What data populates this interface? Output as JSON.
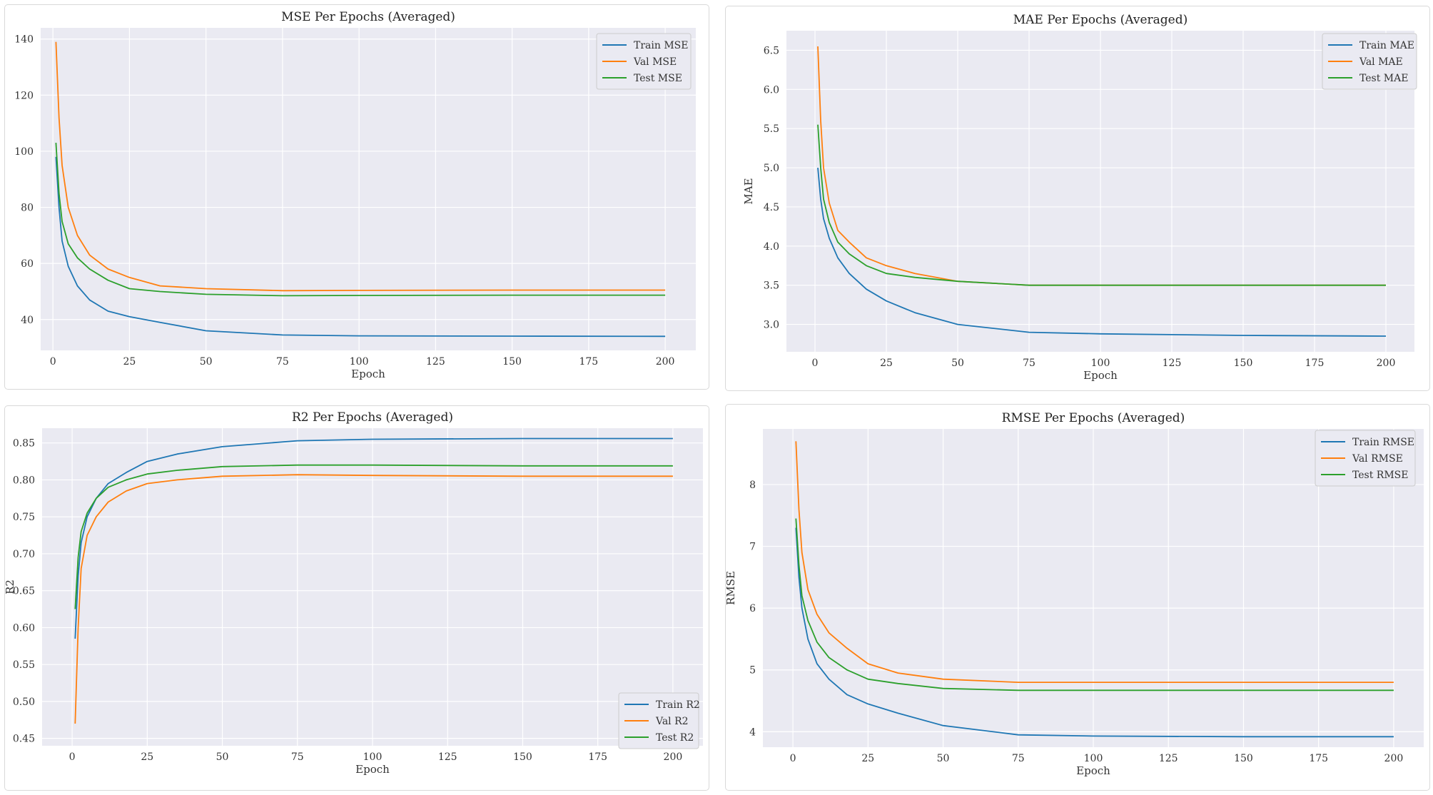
{
  "colors": {
    "train": "#1f77b4",
    "val": "#ff7f0e",
    "test": "#2ca02c",
    "plot_bg": "#eaeaf2",
    "grid": "#ffffff"
  },
  "chart_data": [
    {
      "type": "line",
      "title": "MSE Per Epochs (Averaged)",
      "xlabel": "Epoch",
      "ylabel": "",
      "xlim": [
        -4,
        210
      ],
      "ylim": [
        29,
        144
      ],
      "xticks": [
        0,
        25,
        50,
        75,
        100,
        125,
        150,
        175,
        200
      ],
      "yticks": [
        40,
        60,
        80,
        100,
        120,
        140
      ],
      "legend_position": "top-right",
      "series": [
        {
          "name": "Train MSE",
          "key": "train",
          "x": [
            1,
            2,
            3,
            5,
            8,
            12,
            18,
            25,
            35,
            50,
            75,
            100,
            150,
            200
          ],
          "y": [
            98,
            80,
            68,
            59,
            52,
            47,
            43,
            41,
            39,
            36,
            34.5,
            34.2,
            34.1,
            34
          ]
        },
        {
          "name": "Val MSE",
          "key": "val",
          "x": [
            1,
            2,
            3,
            5,
            8,
            12,
            18,
            25,
            35,
            50,
            75,
            100,
            150,
            200
          ],
          "y": [
            139,
            112,
            95,
            80,
            70,
            63,
            58,
            55,
            52,
            51,
            50.3,
            50.4,
            50.5,
            50.5
          ]
        },
        {
          "name": "Test MSE",
          "key": "test",
          "x": [
            1,
            2,
            3,
            5,
            8,
            12,
            18,
            25,
            35,
            50,
            75,
            100,
            150,
            200
          ],
          "y": [
            103,
            85,
            75,
            67,
            62,
            58,
            54,
            51,
            50,
            49,
            48.5,
            48.6,
            48.7,
            48.7
          ]
        }
      ]
    },
    {
      "type": "line",
      "title": "MAE Per Epochs (Averaged)",
      "xlabel": "Epoch",
      "ylabel": "MAE",
      "xlim": [
        -10,
        210
      ],
      "ylim": [
        2.65,
        6.75
      ],
      "xticks": [
        0,
        25,
        50,
        75,
        100,
        125,
        150,
        175,
        200
      ],
      "yticks": [
        3.0,
        3.5,
        4.0,
        4.5,
        5.0,
        5.5,
        6.0,
        6.5
      ],
      "legend_position": "top-right",
      "series": [
        {
          "name": "Train MAE",
          "key": "train",
          "x": [
            1,
            2,
            3,
            5,
            8,
            12,
            18,
            25,
            35,
            50,
            75,
            100,
            150,
            200
          ],
          "y": [
            5.0,
            4.6,
            4.35,
            4.1,
            3.85,
            3.65,
            3.45,
            3.3,
            3.15,
            3.0,
            2.9,
            2.88,
            2.86,
            2.85
          ]
        },
        {
          "name": "Val MAE",
          "key": "val",
          "x": [
            1,
            2,
            3,
            5,
            8,
            12,
            18,
            25,
            35,
            50,
            75,
            100,
            150,
            200
          ],
          "y": [
            6.55,
            5.6,
            5.0,
            4.55,
            4.2,
            4.05,
            3.85,
            3.75,
            3.65,
            3.55,
            3.5,
            3.5,
            3.5,
            3.5
          ]
        },
        {
          "name": "Test MAE",
          "key": "test",
          "x": [
            1,
            2,
            3,
            5,
            8,
            12,
            18,
            25,
            35,
            50,
            75,
            100,
            150,
            200
          ],
          "y": [
            5.55,
            5.0,
            4.6,
            4.3,
            4.05,
            3.9,
            3.75,
            3.65,
            3.6,
            3.55,
            3.5,
            3.5,
            3.5,
            3.5
          ]
        }
      ]
    },
    {
      "type": "line",
      "title": "R2 Per Epochs (Averaged)",
      "xlabel": "Epoch",
      "ylabel": "R2",
      "xlim": [
        -10,
        210
      ],
      "ylim": [
        0.44,
        0.87
      ],
      "xticks": [
        0,
        25,
        50,
        75,
        100,
        125,
        150,
        175,
        200
      ],
      "yticks": [
        0.45,
        0.5,
        0.55,
        0.6,
        0.65,
        0.7,
        0.75,
        0.8,
        0.85
      ],
      "legend_position": "bottom-right",
      "series": [
        {
          "name": "Train R2",
          "key": "train",
          "x": [
            1,
            2,
            3,
            5,
            8,
            12,
            18,
            25,
            35,
            50,
            75,
            100,
            150,
            200
          ],
          "y": [
            0.585,
            0.67,
            0.715,
            0.75,
            0.775,
            0.795,
            0.81,
            0.825,
            0.835,
            0.845,
            0.853,
            0.855,
            0.856,
            0.856
          ]
        },
        {
          "name": "Val R2",
          "key": "val",
          "x": [
            1,
            2,
            3,
            5,
            8,
            12,
            18,
            25,
            35,
            50,
            75,
            100,
            150,
            200
          ],
          "y": [
            0.47,
            0.6,
            0.68,
            0.725,
            0.75,
            0.77,
            0.785,
            0.795,
            0.8,
            0.805,
            0.807,
            0.806,
            0.805,
            0.805
          ]
        },
        {
          "name": "Test R2",
          "key": "test",
          "x": [
            1,
            2,
            3,
            5,
            8,
            12,
            18,
            25,
            35,
            50,
            75,
            100,
            150,
            200
          ],
          "y": [
            0.625,
            0.695,
            0.73,
            0.755,
            0.775,
            0.79,
            0.8,
            0.808,
            0.813,
            0.818,
            0.82,
            0.82,
            0.819,
            0.819
          ]
        }
      ]
    },
    {
      "type": "line",
      "title": "RMSE Per Epochs (Averaged)",
      "xlabel": "Epoch",
      "ylabel": "RMSE",
      "xlim": [
        -10,
        210
      ],
      "ylim": [
        3.75,
        8.9
      ],
      "xticks": [
        0,
        25,
        50,
        75,
        100,
        125,
        150,
        175,
        200
      ],
      "yticks": [
        4,
        5,
        6,
        7,
        8
      ],
      "legend_position": "top-right",
      "series": [
        {
          "name": "Train RMSE",
          "key": "train",
          "x": [
            1,
            2,
            3,
            5,
            8,
            12,
            18,
            25,
            35,
            50,
            75,
            100,
            150,
            200
          ],
          "y": [
            7.3,
            6.5,
            6.0,
            5.5,
            5.1,
            4.85,
            4.6,
            4.45,
            4.3,
            4.1,
            3.95,
            3.93,
            3.92,
            3.92
          ]
        },
        {
          "name": "Val RMSE",
          "key": "val",
          "x": [
            1,
            2,
            3,
            5,
            8,
            12,
            18,
            25,
            35,
            50,
            75,
            100,
            150,
            200
          ],
          "y": [
            8.7,
            7.6,
            6.9,
            6.3,
            5.9,
            5.6,
            5.35,
            5.1,
            4.95,
            4.85,
            4.8,
            4.8,
            4.8,
            4.8
          ]
        },
        {
          "name": "Test RMSE",
          "key": "test",
          "x": [
            1,
            2,
            3,
            5,
            8,
            12,
            18,
            25,
            35,
            50,
            75,
            100,
            150,
            200
          ],
          "y": [
            7.45,
            6.7,
            6.2,
            5.8,
            5.45,
            5.2,
            5.0,
            4.85,
            4.78,
            4.7,
            4.67,
            4.67,
            4.67,
            4.67
          ]
        }
      ]
    }
  ]
}
